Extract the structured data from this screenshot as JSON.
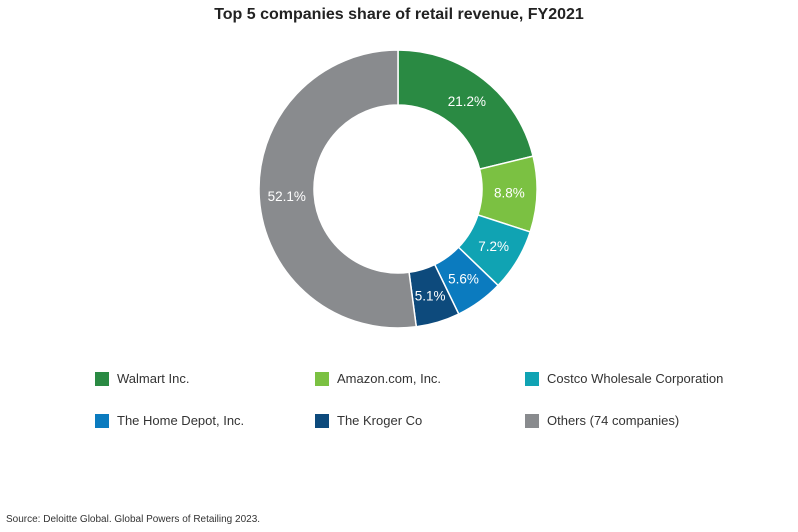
{
  "chart_data": {
    "type": "pie",
    "variant": "donut",
    "title": "Top 5 companies share of retail revenue, FY2021",
    "categories": [
      "Walmart Inc.",
      "Amazon.com, Inc.",
      "Costco Wholesale Corporation",
      "The Home Depot, Inc.",
      "The Kroger Co",
      "Others (74 companies)"
    ],
    "values": [
      21.2,
      8.8,
      7.2,
      5.6,
      5.1,
      52.1
    ],
    "data_labels": [
      "21.2%",
      "8.8%",
      "7.2%",
      "5.6%",
      "5.1%",
      "52.1%"
    ],
    "colors": [
      "#2a8a43",
      "#7bc142",
      "#10a3b3",
      "#0b7bbf",
      "#0d4a7c",
      "#898b8e"
    ],
    "unit": "%",
    "legend_position": "bottom",
    "source": "Source: Deloitte Global. Global Powers of Retailing 2023."
  }
}
